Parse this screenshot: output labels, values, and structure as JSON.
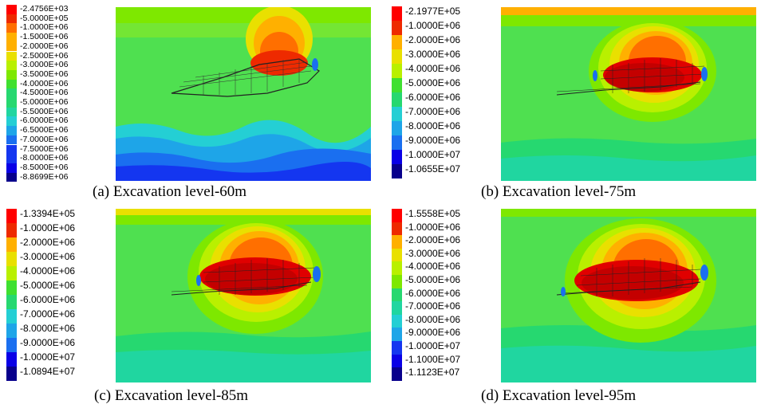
{
  "palette": {
    "steps": [
      "#ff0000",
      "#ee2a00",
      "#ff6f00",
      "#ffb000",
      "#e9e000",
      "#b9f000",
      "#7ee800",
      "#3fe030",
      "#26d870",
      "#20d6a0",
      "#24cfd4",
      "#1ea5e8",
      "#1a6ff0",
      "#1436f0",
      "#0a00e6",
      "#08008c"
    ],
    "bg_green": "#4fe050",
    "bg_teal": "#2fd8b0",
    "bg_deep": "#1a8ee8",
    "red": "#e00000",
    "dark_red": "#b00000"
  },
  "panels": [
    {
      "id": "a",
      "caption": "(a) Excavation level-60m",
      "legend": [
        "-2.4756E+03",
        "-5.0000E+05",
        "-1.0000E+06",
        "-1.5000E+06",
        "-2.0000E+06",
        "-2.5000E+06",
        "-3.0000E+06",
        "-3.5000E+06",
        "-4.0000E+06",
        "-4.5000E+06",
        "-5.0000E+06",
        "-5.5000E+06",
        "-6.0000E+06",
        "-6.5000E+06",
        "-7.0000E+06",
        "-7.5000E+06",
        "-8.0000E+06",
        "-8.5000E+06",
        "-8.8699E+06"
      ]
    },
    {
      "id": "b",
      "caption": "(b) Excavation level-75m",
      "legend": [
        "-2.1977E+05",
        "-1.0000E+06",
        "-2.0000E+06",
        "-3.0000E+06",
        "-4.0000E+06",
        "-5.0000E+06",
        "-6.0000E+06",
        "-7.0000E+06",
        "-8.0000E+06",
        "-9.0000E+06",
        "-1.0000E+07",
        "-1.0655E+07"
      ]
    },
    {
      "id": "c",
      "caption": "(c) Excavation level-85m",
      "legend": [
        "-1.3394E+05",
        "-1.0000E+06",
        "-2.0000E+06",
        "-3.0000E+06",
        "-4.0000E+06",
        "-5.0000E+06",
        "-6.0000E+06",
        "-7.0000E+06",
        "-8.0000E+06",
        "-9.0000E+06",
        "-1.0000E+07",
        "-1.0894E+07"
      ]
    },
    {
      "id": "d",
      "caption": "(d) Excavation level-95m",
      "legend": [
        "-1.5558E+05",
        "-1.0000E+06",
        "-2.0000E+06",
        "-3.0000E+06",
        "-4.0000E+06",
        "-5.0000E+06",
        "-6.0000E+06",
        "-7.0000E+06",
        "-8.0000E+06",
        "-9.0000E+06",
        "-1.0000E+07",
        "-1.1000E+07",
        "-1.1123E+07"
      ]
    }
  ]
}
